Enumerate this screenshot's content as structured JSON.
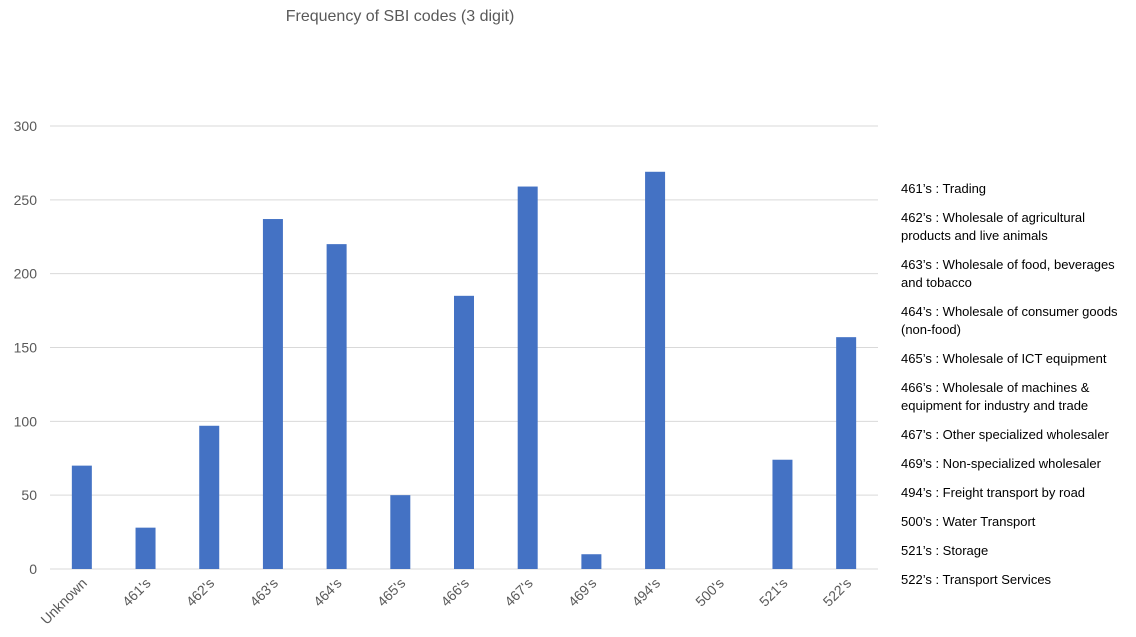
{
  "chart_data": {
    "type": "bar",
    "title": "Frequency of SBI codes (3 digit)",
    "categories": [
      "Unknown",
      "461's",
      "462's",
      "463's",
      "464's",
      "465's",
      "466's",
      "467's",
      "469's",
      "494's",
      "500's",
      "521's",
      "522's"
    ],
    "values": [
      70,
      28,
      97,
      237,
      220,
      50,
      185,
      259,
      10,
      269,
      0,
      74,
      157
    ],
    "ylim": [
      0,
      300
    ],
    "yticks": [
      0,
      50,
      100,
      150,
      200,
      250,
      300
    ],
    "grid": true,
    "bar_color": "#4472C4",
    "xlabel": "",
    "ylabel": "",
    "legend_position": "right",
    "legend_notes": [
      "461’s : Trading",
      "462’s : Wholesale of agricultural products and live animals",
      "463’s : Wholesale of food, beverages and tobacco",
      "464’s : Wholesale of consumer goods (non-food)",
      "465’s : Wholesale of ICT equipment",
      "466’s : Wholesale of machines & equipment for industry and trade",
      "467’s : Other specialized wholesaler",
      "469’s : Non-specialized wholesaler",
      "494’s : Freight transport by road",
      "500’s : Water Transport",
      "521’s : Storage",
      "522’s : Transport Services"
    ]
  }
}
